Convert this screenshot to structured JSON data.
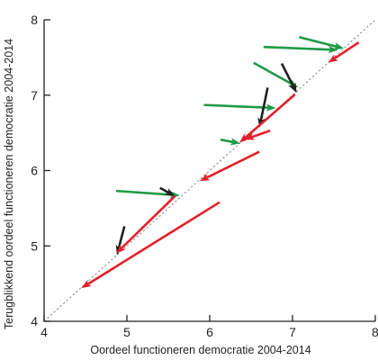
{
  "chart_data": {
    "type": "arrow-scatter",
    "title": "",
    "xlabel": "Oordeel functioneren democratie 2004-2014",
    "ylabel": "Terugblikkend oordeel functioneren democratie 2004-2014",
    "xlim": [
      4,
      8
    ],
    "ylim": [
      4,
      8
    ],
    "xticks": [
      4,
      5,
      6,
      7,
      8
    ],
    "yticks": [
      4,
      5,
      6,
      7,
      8
    ],
    "grid": false,
    "reference_line": "y = x (dotted)",
    "colors": {
      "green": "#1f9a47",
      "red": "#e4202a",
      "black": "#231f20",
      "axis": "#231f20",
      "diagonal": "#8a8a8a"
    },
    "arrows": [
      {
        "color": "green",
        "from": [
          7.08,
          7.77
        ],
        "to": [
          7.62,
          7.62
        ]
      },
      {
        "color": "green",
        "from": [
          6.65,
          7.64
        ],
        "to": [
          7.55,
          7.6
        ]
      },
      {
        "color": "green",
        "from": [
          6.53,
          7.43
        ],
        "to": [
          7.07,
          7.1
        ]
      },
      {
        "color": "green",
        "from": [
          5.93,
          6.87
        ],
        "to": [
          6.8,
          6.83
        ]
      },
      {
        "color": "green",
        "from": [
          6.13,
          6.41
        ],
        "to": [
          6.37,
          6.36
        ]
      },
      {
        "color": "green",
        "from": [
          4.87,
          5.73
        ],
        "to": [
          5.64,
          5.67
        ]
      },
      {
        "color": "black",
        "from": [
          6.87,
          7.42
        ],
        "to": [
          7.05,
          7.03
        ]
      },
      {
        "color": "black",
        "from": [
          6.7,
          7.1
        ],
        "to": [
          6.6,
          6.57
        ]
      },
      {
        "color": "black",
        "from": [
          5.4,
          5.77
        ],
        "to": [
          5.58,
          5.66
        ]
      },
      {
        "color": "black",
        "from": [
          4.97,
          5.26
        ],
        "to": [
          4.88,
          4.88
        ]
      },
      {
        "color": "red",
        "from": [
          7.8,
          7.7
        ],
        "to": [
          7.43,
          7.43
        ]
      },
      {
        "color": "red",
        "from": [
          7.03,
          7.01
        ],
        "to": [
          6.36,
          6.37
        ]
      },
      {
        "color": "red",
        "from": [
          6.73,
          6.53
        ],
        "to": [
          6.42,
          6.41
        ]
      },
      {
        "color": "red",
        "from": [
          6.6,
          6.25
        ],
        "to": [
          5.88,
          5.86
        ]
      },
      {
        "color": "red",
        "from": [
          5.58,
          5.66
        ],
        "to": [
          4.87,
          4.9
        ]
      },
      {
        "color": "red",
        "from": [
          6.12,
          5.58
        ],
        "to": [
          4.45,
          4.44
        ]
      }
    ]
  }
}
